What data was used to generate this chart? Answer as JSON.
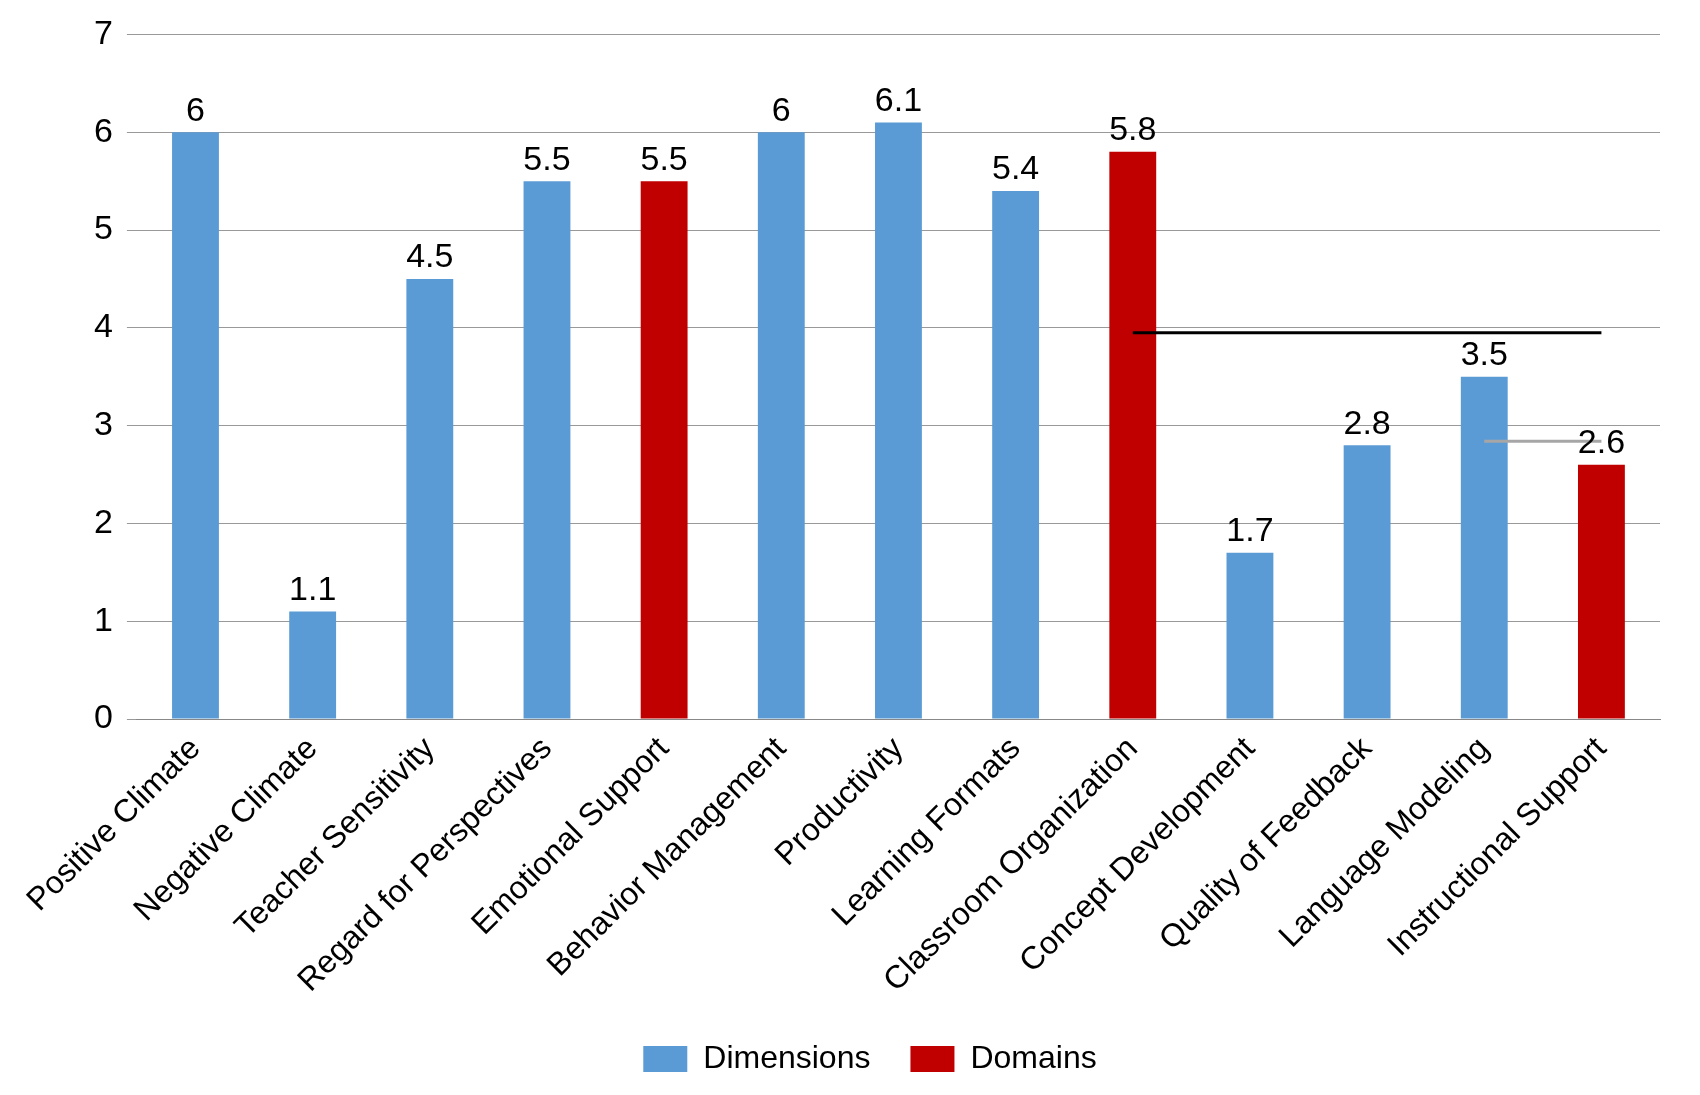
{
  "chart_data": {
    "type": "bar",
    "categories": [
      "Positive Climate",
      "Negative Climate",
      "Teacher Sensitivity",
      "Regard for Perspectives",
      "Emotional Support",
      "Behavior Management",
      "Productivity",
      "Learning Formats",
      "Classroom Organization",
      "Concept Development",
      "Quality of Feedback",
      "Language Modeling",
      "Instructional Support"
    ],
    "series": [
      {
        "name": "Dimensions",
        "color": "#5b9bd5",
        "values": [
          6,
          1.1,
          4.5,
          5.5,
          null,
          6,
          6.1,
          5.4,
          null,
          1.7,
          2.8,
          3.5,
          null
        ],
        "value_labels": [
          "6",
          "1.1",
          "4.5",
          "5.5",
          null,
          "6",
          "6.1",
          "5.4",
          null,
          "1.7",
          "2.8",
          "3.5",
          null
        ]
      },
      {
        "name": "Domains",
        "color": "#c00000",
        "values": [
          null,
          null,
          null,
          null,
          5.5,
          null,
          null,
          null,
          5.8,
          null,
          null,
          null,
          2.6
        ],
        "value_labels": [
          null,
          null,
          null,
          null,
          "5.5",
          null,
          null,
          null,
          "5.8",
          null,
          null,
          null,
          "2.6"
        ]
      },
      {
        "type": "line",
        "color": "#000000",
        "values": [
          null,
          null,
          null,
          null,
          null,
          null,
          null,
          null,
          3.95,
          3.95,
          3.95,
          3.95,
          3.95
        ]
      },
      {
        "type": "line",
        "color": "#a6a6a6",
        "values": [
          null,
          null,
          null,
          null,
          null,
          null,
          null,
          null,
          null,
          null,
          null,
          2.84,
          2.84
        ]
      }
    ],
    "ylim": [
      0,
      7
    ],
    "yticks": [
      0,
      1,
      2,
      3,
      4,
      5,
      6,
      7
    ],
    "grid": "y",
    "legend": "bottom",
    "marker": "none"
  }
}
